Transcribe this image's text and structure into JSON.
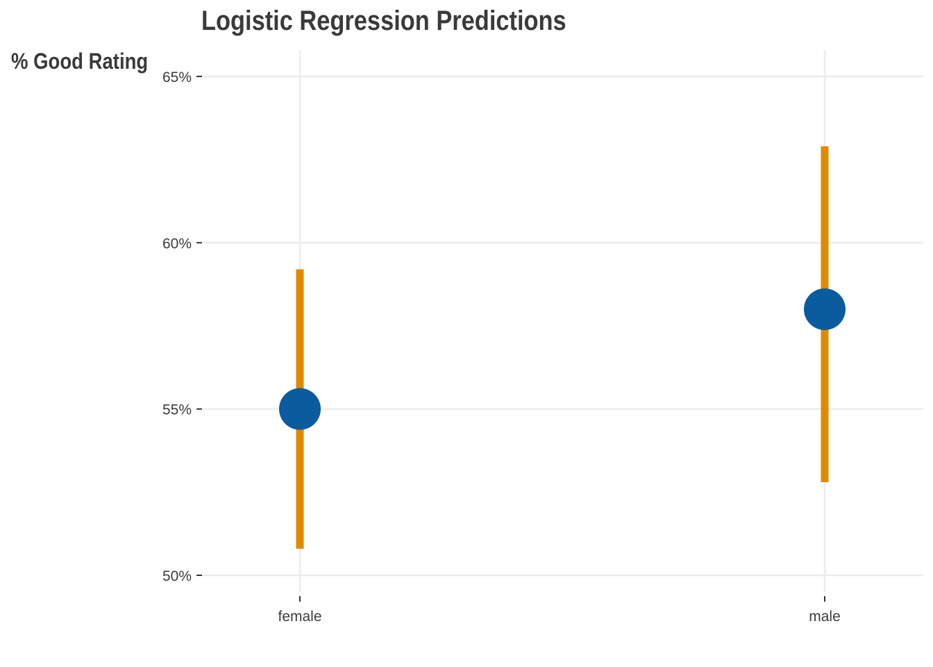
{
  "chart_data": {
    "type": "point-range",
    "title": "Logistic Regression Predictions",
    "xlabel": "",
    "ylabel": "% Good Rating",
    "categories": [
      "female",
      "male"
    ],
    "estimates": [
      55.0,
      58.0
    ],
    "lower": [
      50.8,
      52.8
    ],
    "upper": [
      59.2,
      62.9
    ],
    "y_unit": "%",
    "ylim": [
      50,
      65
    ],
    "y_ticks": [
      50,
      55,
      60,
      65
    ],
    "y_tick_labels": [
      "50%",
      "55%",
      "60%",
      "65%"
    ],
    "grid": true,
    "colors": {
      "point": "#0a5c9e",
      "interval": "#e08a00",
      "grid": "#ececec",
      "text": "#3a3a3a"
    }
  }
}
